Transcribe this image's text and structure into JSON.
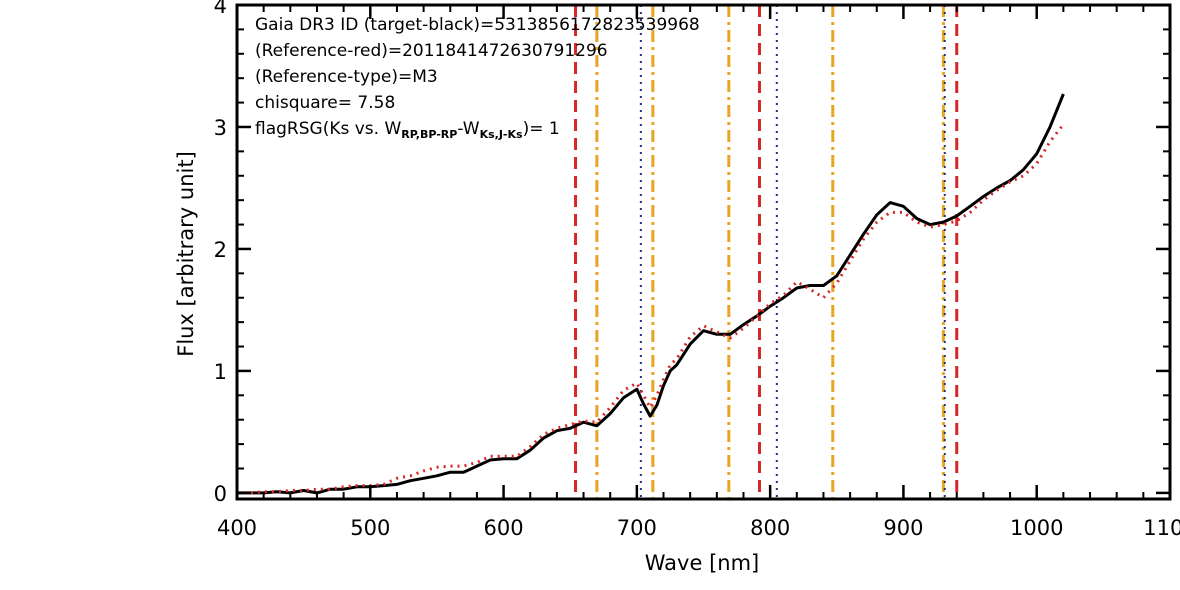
{
  "chart_data": {
    "type": "line",
    "xlabel": "Wave [nm]",
    "ylabel": "Flux [arbitrary unit]",
    "xlim": [
      400,
      1100
    ],
    "ylim": [
      -0.05,
      4
    ],
    "x_ticks": [
      400,
      500,
      600,
      700,
      800,
      900,
      1000,
      1100
    ],
    "x_tick_labels": [
      "400",
      "500",
      "600",
      "700",
      "800",
      "900",
      "1000",
      "1100"
    ],
    "y_ticks": [
      0,
      1,
      2,
      3,
      4
    ],
    "y_tick_labels": [
      "0",
      "1",
      "2",
      "3",
      "4"
    ],
    "grid": false,
    "annotations": {
      "line1": "Gaia DR3 ID (target-black)=5313856172823539968",
      "line2": "(Reference-red)=2011841472630791296",
      "line3": "(Reference-type)=M3",
      "line4": "chisquare= 7.58",
      "line5_prefix": "flagRSG(Ks vs. W",
      "line5_sub1": "RP,BP-RP",
      "line5_mid": "-W",
      "line5_sub2": "Ks,J-Ks",
      "line5_suffix": ")= 1"
    },
    "series": [
      {
        "color": "#000000",
        "style": "solid",
        "x": [
          400,
          410,
          420,
          430,
          440,
          450,
          460,
          470,
          480,
          490,
          500,
          510,
          520,
          530,
          540,
          550,
          560,
          570,
          580,
          590,
          600,
          610,
          620,
          630,
          640,
          650,
          660,
          670,
          680,
          690,
          700,
          705,
          710,
          715,
          720,
          725,
          730,
          740,
          750,
          760,
          770,
          780,
          790,
          800,
          810,
          820,
          830,
          840,
          850,
          860,
          870,
          880,
          890,
          900,
          910,
          920,
          930,
          940,
          950,
          960,
          970,
          980,
          990,
          1000,
          1010,
          1020
        ],
        "y": [
          0.0,
          0.0,
          0.0,
          0.01,
          0.0,
          0.02,
          0.0,
          0.03,
          0.03,
          0.05,
          0.05,
          0.06,
          0.07,
          0.1,
          0.12,
          0.14,
          0.17,
          0.17,
          0.22,
          0.27,
          0.28,
          0.28,
          0.35,
          0.45,
          0.51,
          0.53,
          0.58,
          0.55,
          0.65,
          0.78,
          0.85,
          0.73,
          0.63,
          0.72,
          0.88,
          1.0,
          1.05,
          1.22,
          1.33,
          1.3,
          1.3,
          1.38,
          1.45,
          1.53,
          1.6,
          1.68,
          1.7,
          1.7,
          1.78,
          1.95,
          2.12,
          2.28,
          2.38,
          2.35,
          2.25,
          2.2,
          2.22,
          2.27,
          2.35,
          2.43,
          2.5,
          2.56,
          2.65,
          2.78,
          3.0,
          3.27
        ]
      },
      {
        "color": "#d62728",
        "style": "dotted",
        "x": [
          400,
          410,
          420,
          430,
          440,
          450,
          460,
          470,
          480,
          490,
          500,
          510,
          520,
          530,
          540,
          550,
          560,
          570,
          580,
          590,
          600,
          610,
          620,
          630,
          640,
          650,
          660,
          670,
          680,
          690,
          700,
          705,
          710,
          715,
          720,
          725,
          730,
          740,
          750,
          760,
          770,
          780,
          790,
          800,
          810,
          820,
          830,
          840,
          850,
          860,
          870,
          880,
          890,
          900,
          910,
          920,
          930,
          940,
          950,
          960,
          970,
          980,
          990,
          1000,
          1010,
          1020
        ],
        "y": [
          0.0,
          0.0,
          0.01,
          0.01,
          0.02,
          0.02,
          0.03,
          0.03,
          0.05,
          0.06,
          0.06,
          0.07,
          0.12,
          0.14,
          0.18,
          0.21,
          0.22,
          0.22,
          0.25,
          0.3,
          0.3,
          0.3,
          0.38,
          0.48,
          0.53,
          0.56,
          0.59,
          0.58,
          0.7,
          0.84,
          0.9,
          0.8,
          0.7,
          0.8,
          0.93,
          1.05,
          1.1,
          1.28,
          1.37,
          1.32,
          1.27,
          1.35,
          1.45,
          1.55,
          1.62,
          1.73,
          1.67,
          1.6,
          1.72,
          1.9,
          2.08,
          2.22,
          2.3,
          2.3,
          2.22,
          2.18,
          2.2,
          2.23,
          2.3,
          2.4,
          2.48,
          2.55,
          2.6,
          2.7,
          2.88,
          3.02
        ]
      }
    ],
    "vertical_lines": [
      {
        "x": 654,
        "color": "#d62728",
        "style": "dashed"
      },
      {
        "x": 670,
        "color": "#e8a520",
        "style": "dashdot"
      },
      {
        "x": 703,
        "color": "#2b2b7f",
        "style": "dotted"
      },
      {
        "x": 712,
        "color": "#e8a520",
        "style": "dashdot"
      },
      {
        "x": 769,
        "color": "#e8a520",
        "style": "dashdot"
      },
      {
        "x": 792,
        "color": "#d62728",
        "style": "dashed"
      },
      {
        "x": 805,
        "color": "#2b2b7f",
        "style": "dotted"
      },
      {
        "x": 847,
        "color": "#e8a520",
        "style": "dashdot"
      },
      {
        "x": 930,
        "color": "#e8a520",
        "style": "dashdot"
      },
      {
        "x": 931,
        "color": "#2b2b7f",
        "style": "dotted"
      },
      {
        "x": 940,
        "color": "#d62728",
        "style": "dashed"
      }
    ]
  }
}
